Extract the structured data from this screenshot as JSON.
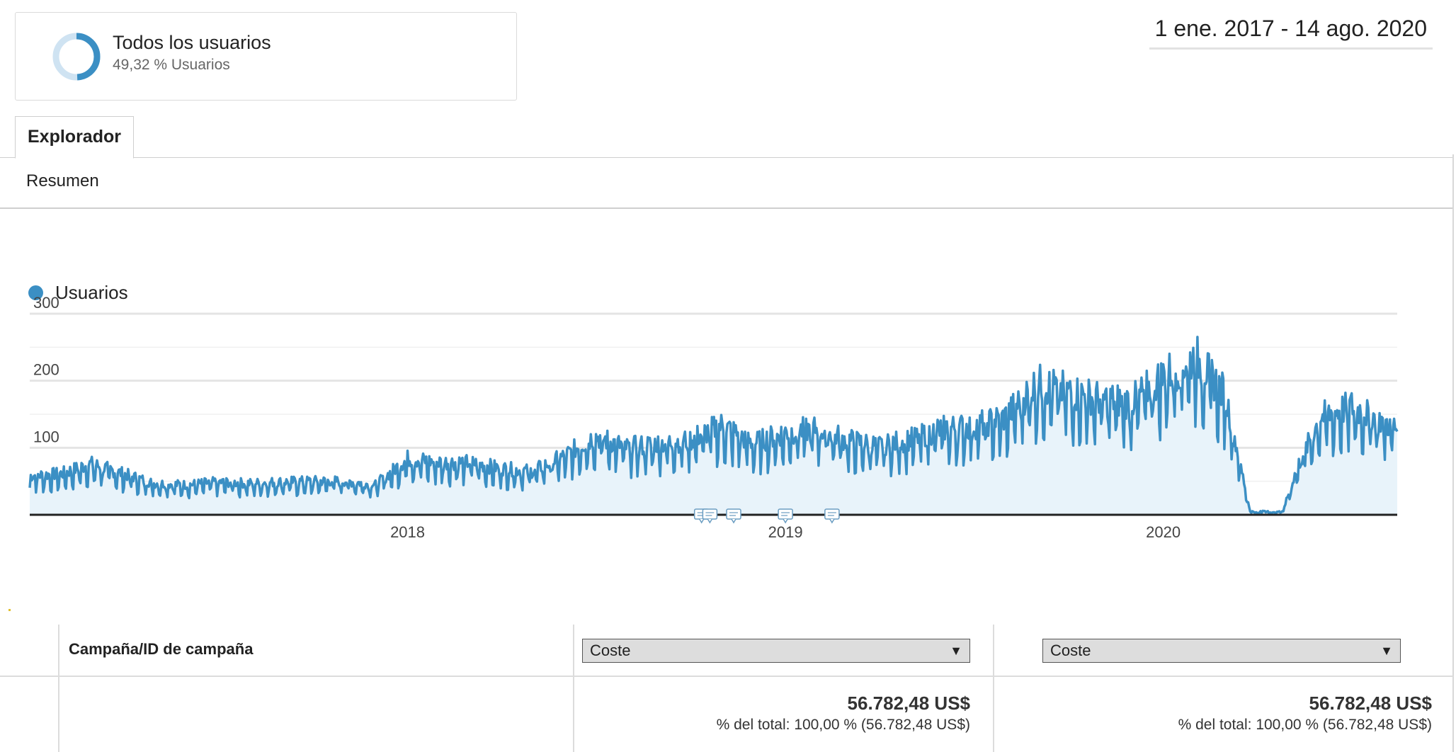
{
  "segment": {
    "name": "Todos los usuarios",
    "percentage_text": "49,32 % Usuarios",
    "percentage": 49.32,
    "donut_color": "#3b8fc4",
    "donut_track_color": "#cfe3f2"
  },
  "date_range": "1 ene. 2017 - 14 ago. 2020",
  "tabs": {
    "explorer_label": "Explorador",
    "summary_label": "Resumen"
  },
  "chart_data": {
    "type": "area",
    "series": [
      {
        "name": "Usuarios",
        "color": "#3b8fc4"
      }
    ],
    "yticks": [
      100,
      200,
      300
    ],
    "ylim": [
      0,
      300
    ],
    "xticks": [
      "2018",
      "2019",
      "2020"
    ],
    "xlim": [
      "2017-01-01",
      "2020-08-14"
    ],
    "annotation_count": 5,
    "weekly_profile": [
      {
        "date": "2017-01-01",
        "value": 52
      },
      {
        "date": "2017-02-01",
        "value": 55
      },
      {
        "date": "2017-03-01",
        "value": 68
      },
      {
        "date": "2017-04-01",
        "value": 55
      },
      {
        "date": "2017-05-01",
        "value": 42
      },
      {
        "date": "2017-06-01",
        "value": 40
      },
      {
        "date": "2017-07-01",
        "value": 44
      },
      {
        "date": "2017-08-01",
        "value": 42
      },
      {
        "date": "2017-09-01",
        "value": 44
      },
      {
        "date": "2017-10-01",
        "value": 45
      },
      {
        "date": "2017-11-01",
        "value": 45
      },
      {
        "date": "2017-12-01",
        "value": 40
      },
      {
        "date": "2018-01-01",
        "value": 75
      },
      {
        "date": "2018-02-01",
        "value": 70
      },
      {
        "date": "2018-03-01",
        "value": 70
      },
      {
        "date": "2018-04-01",
        "value": 62
      },
      {
        "date": "2018-05-01",
        "value": 58
      },
      {
        "date": "2018-06-01",
        "value": 78
      },
      {
        "date": "2018-07-01",
        "value": 105
      },
      {
        "date": "2018-08-01",
        "value": 90
      },
      {
        "date": "2018-09-01",
        "value": 95
      },
      {
        "date": "2018-10-01",
        "value": 100
      },
      {
        "date": "2018-11-01",
        "value": 120
      },
      {
        "date": "2018-12-01",
        "value": 95
      },
      {
        "date": "2019-01-01",
        "value": 110
      },
      {
        "date": "2019-02-01",
        "value": 115
      },
      {
        "date": "2019-03-01",
        "value": 100
      },
      {
        "date": "2019-04-01",
        "value": 92
      },
      {
        "date": "2019-05-01",
        "value": 100
      },
      {
        "date": "2019-06-01",
        "value": 115
      },
      {
        "date": "2019-07-01",
        "value": 118
      },
      {
        "date": "2019-08-01",
        "value": 130
      },
      {
        "date": "2019-09-01",
        "value": 175
      },
      {
        "date": "2019-10-01",
        "value": 165
      },
      {
        "date": "2019-11-01",
        "value": 155
      },
      {
        "date": "2019-12-01",
        "value": 150
      },
      {
        "date": "2020-01-01",
        "value": 185
      },
      {
        "date": "2020-02-01",
        "value": 210
      },
      {
        "date": "2020-03-01",
        "value": 160
      },
      {
        "date": "2020-03-25",
        "value": 5
      },
      {
        "date": "2020-04-25",
        "value": 3
      },
      {
        "date": "2020-05-10",
        "value": 65
      },
      {
        "date": "2020-06-01",
        "value": 130
      },
      {
        "date": "2020-07-01",
        "value": 145
      },
      {
        "date": "2020-08-14",
        "value": 115
      }
    ]
  },
  "table": {
    "dimension_header": "Campaña/ID de campaña",
    "metric1": {
      "label": "Coste",
      "caret": "▼",
      "total_value": "56.782,48 US$",
      "total_sub": "% del total: 100,00 % (56.782,48 US$)"
    },
    "metric2": {
      "label": "Coste",
      "caret": "▼",
      "total_value": "56.782,48 US$",
      "total_sub": "% del total: 100,00 % (56.782,48 US$)"
    }
  }
}
